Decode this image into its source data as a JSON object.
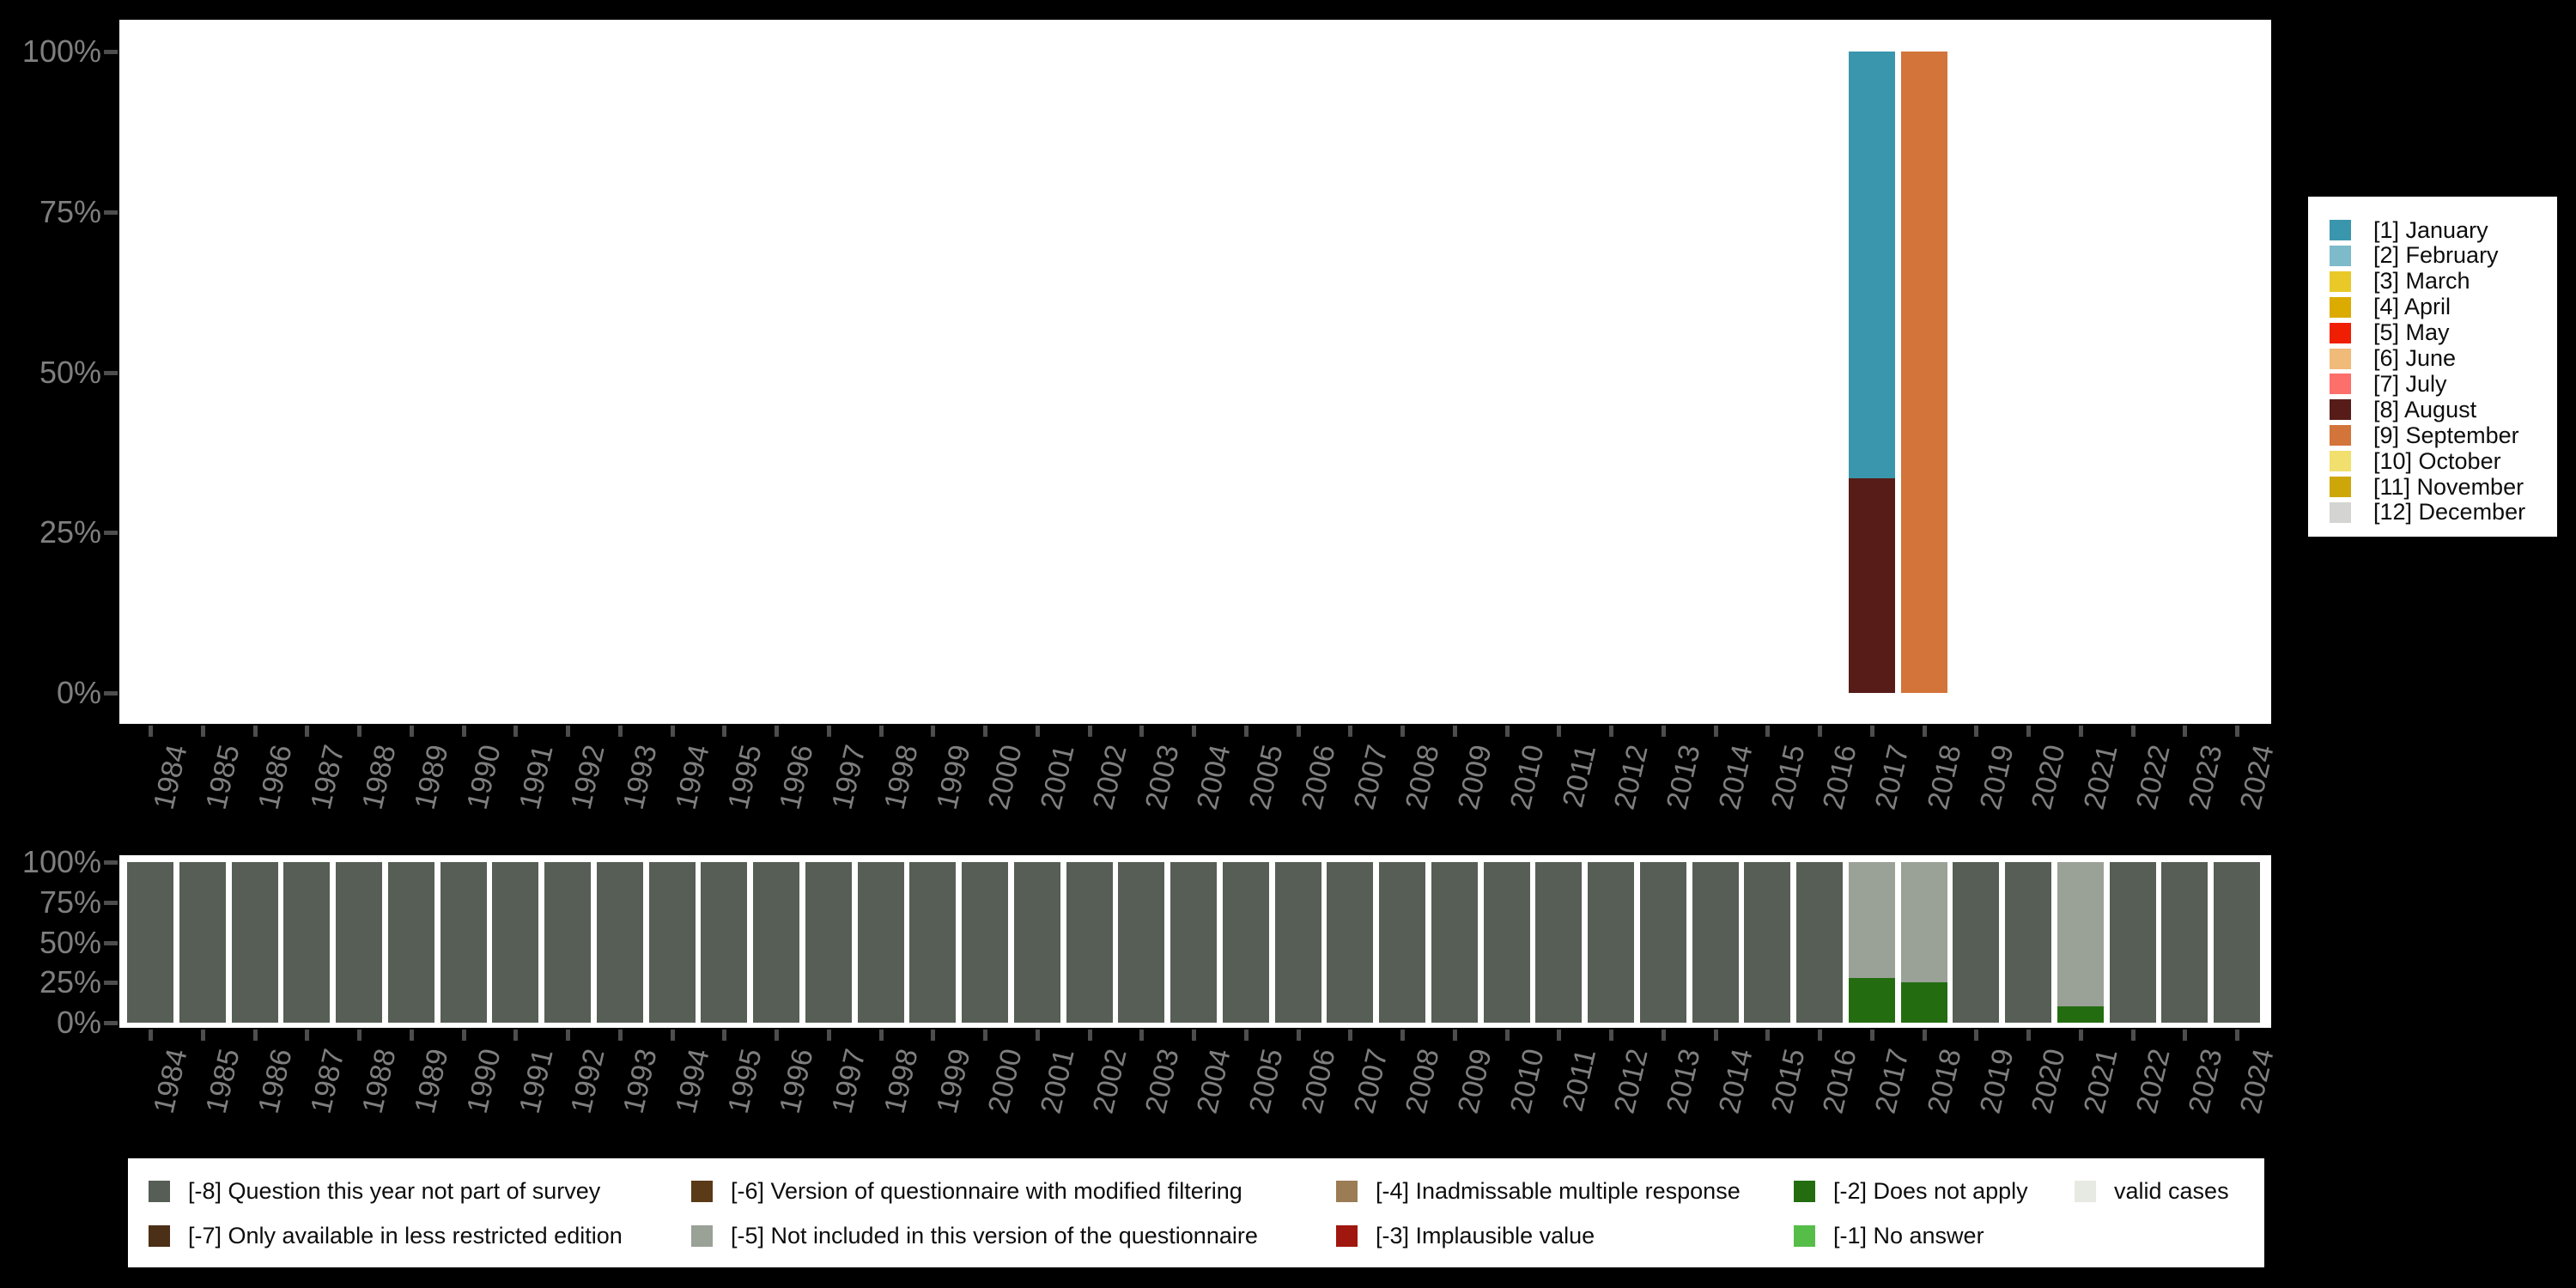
{
  "background_color": "#000000",
  "panel_color": "#ffffff",
  "axis": {
    "tick_color": "#4d4d4d",
    "label_color": "#7f7f7f",
    "y_tick_labels": [
      "0%",
      "25%",
      "50%",
      "75%",
      "100%"
    ],
    "x_tick_labels": [
      "1984",
      "1985",
      "1986",
      "1987",
      "1988",
      "1989",
      "1990",
      "1991",
      "1992",
      "1993",
      "1994",
      "1995",
      "1996",
      "1997",
      "1998",
      "1999",
      "2000",
      "2001",
      "2002",
      "2003",
      "2004",
      "2005",
      "2006",
      "2007",
      "2008",
      "2009",
      "2010",
      "2011",
      "2012",
      "2013",
      "2014",
      "2015",
      "2016",
      "2017",
      "2018",
      "2019",
      "2020",
      "2021",
      "2022",
      "2023",
      "2024"
    ]
  },
  "month_legend": {
    "items": [
      {
        "label": "[1] January",
        "color": "#3a96ad"
      },
      {
        "label": "[2] February",
        "color": "#7dbaca"
      },
      {
        "label": "[3] March",
        "color": "#e9c928"
      },
      {
        "label": "[4] April",
        "color": "#dcab00"
      },
      {
        "label": "[5] May",
        "color": "#f01f04"
      },
      {
        "label": "[6] June",
        "color": "#f0ba79"
      },
      {
        "label": "[7] July",
        "color": "#fc6f6b"
      },
      {
        "label": "[8] August",
        "color": "#571c18"
      },
      {
        "label": "[9] September",
        "color": "#d3743a"
      },
      {
        "label": "[10] October",
        "color": "#f1df6e"
      },
      {
        "label": "[11] November",
        "color": "#cda70a"
      },
      {
        "label": "[12] December",
        "color": "#d4d4d2"
      }
    ]
  },
  "missing_legend": {
    "items": [
      {
        "label": "[-8] Question this year not part of survey",
        "color": "#565e55",
        "col": 0,
        "row": 0
      },
      {
        "label": "[-7] Only available in less restricted edition",
        "color": "#4b2f16",
        "col": 0,
        "row": 1
      },
      {
        "label": "[-6] Version of questionnaire with modified filtering",
        "color": "#5a3a17",
        "col": 1,
        "row": 0
      },
      {
        "label": "[-5] Not included in this version of the questionnaire",
        "color": "#9aa196",
        "col": 1,
        "row": 1
      },
      {
        "label": "[-4] Inadmissable multiple response",
        "color": "#9b7c55",
        "col": 2,
        "row": 0
      },
      {
        "label": "[-3] Implausible value",
        "color": "#a0170f",
        "col": 2,
        "row": 1
      },
      {
        "label": "[-2] Does not apply",
        "color": "#236d10",
        "col": 3,
        "row": 0
      },
      {
        "label": "[-1] No answer",
        "color": "#56bd48",
        "col": 3,
        "row": 1
      },
      {
        "label": "valid cases",
        "color": "#e7e9e3",
        "col": 4,
        "row": 0
      }
    ]
  },
  "chart_data": [
    {
      "type": "bar",
      "subtype": "stacked_percentage_column",
      "title": "",
      "xlabel": "",
      "ylabel": "",
      "categories": [
        "1984",
        "1985",
        "1986",
        "1987",
        "1988",
        "1989",
        "1990",
        "1991",
        "1992",
        "1993",
        "1994",
        "1995",
        "1996",
        "1997",
        "1998",
        "1999",
        "2000",
        "2001",
        "2002",
        "2003",
        "2004",
        "2005",
        "2006",
        "2007",
        "2008",
        "2009",
        "2010",
        "2011",
        "2012",
        "2013",
        "2014",
        "2015",
        "2016",
        "2017",
        "2018",
        "2019",
        "2020",
        "2021",
        "2022",
        "2023",
        "2024"
      ],
      "yticks": [
        "0%",
        "25%",
        "50%",
        "75%",
        "100%"
      ],
      "ylim": [
        0,
        100
      ],
      "grid": false,
      "legend_position": "right",
      "series": [
        {
          "name": "[1] January",
          "color": "#3a96ad",
          "values": {
            "2017": 66.5
          }
        },
        {
          "name": "[8] August",
          "color": "#571c18",
          "values": {
            "2017": 33.5
          }
        },
        {
          "name": "[9] September",
          "color": "#d3743a",
          "values": {
            "2018": 100
          }
        }
      ]
    },
    {
      "type": "bar",
      "subtype": "stacked_percentage_column",
      "title": "",
      "xlabel": "",
      "ylabel": "",
      "categories": [
        "1984",
        "1985",
        "1986",
        "1987",
        "1988",
        "1989",
        "1990",
        "1991",
        "1992",
        "1993",
        "1994",
        "1995",
        "1996",
        "1997",
        "1998",
        "1999",
        "2000",
        "2001",
        "2002",
        "2003",
        "2004",
        "2005",
        "2006",
        "2007",
        "2008",
        "2009",
        "2010",
        "2011",
        "2012",
        "2013",
        "2014",
        "2015",
        "2016",
        "2017",
        "2018",
        "2019",
        "2020",
        "2021",
        "2022",
        "2023",
        "2024"
      ],
      "yticks": [
        "0%",
        "25%",
        "50%",
        "75%",
        "100%"
      ],
      "ylim": [
        0,
        100
      ],
      "grid": false,
      "legend_position": "bottom",
      "series": [
        {
          "name": "[-8] Question this year not part of survey",
          "color": "#565e55",
          "values": {
            "1984": 100,
            "1985": 100,
            "1986": 100,
            "1987": 100,
            "1988": 100,
            "1989": 100,
            "1990": 100,
            "1991": 100,
            "1992": 100,
            "1993": 100,
            "1994": 100,
            "1995": 100,
            "1996": 100,
            "1997": 100,
            "1998": 100,
            "1999": 100,
            "2000": 100,
            "2001": 100,
            "2002": 100,
            "2003": 100,
            "2004": 100,
            "2005": 100,
            "2006": 100,
            "2007": 100,
            "2008": 100,
            "2009": 100,
            "2010": 100,
            "2011": 100,
            "2012": 100,
            "2013": 100,
            "2014": 100,
            "2015": 100,
            "2016": 100,
            "2019": 100,
            "2020": 100,
            "2022": 100,
            "2023": 100,
            "2024": 100
          }
        },
        {
          "name": "[-5] Not included in this version of the questionnaire",
          "color": "#9aa196",
          "values": {
            "2017": 72,
            "2018": 75,
            "2021": 90
          }
        },
        {
          "name": "[-2] Does not apply",
          "color": "#236d10",
          "values": {
            "2017": 28,
            "2018": 25,
            "2021": 10
          }
        }
      ]
    }
  ]
}
